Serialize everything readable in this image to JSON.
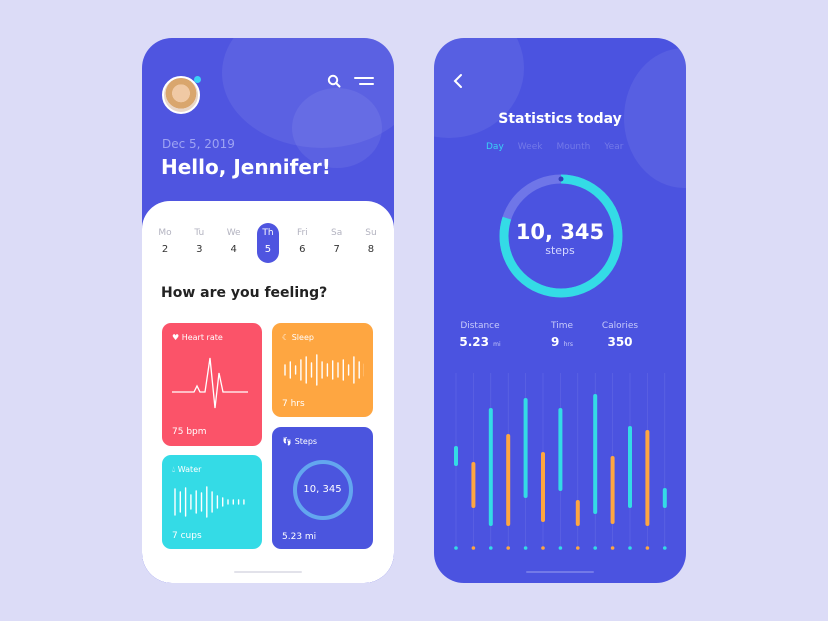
{
  "home": {
    "date": "Dec 5, 2019",
    "greeting": "Hello, Jennifer!",
    "question": "How are you feeling?",
    "days": [
      {
        "n": "Mo",
        "d": "2"
      },
      {
        "n": "Tu",
        "d": "3"
      },
      {
        "n": "We",
        "d": "4"
      },
      {
        "n": "Th",
        "d": "5",
        "selected": true
      },
      {
        "n": "Fri",
        "d": "6"
      },
      {
        "n": "Sa",
        "d": "7"
      },
      {
        "n": "Su",
        "d": "8"
      }
    ],
    "cards": {
      "heart": {
        "title": "Heart rate",
        "value": "75 bpm",
        "color": "#fb5369"
      },
      "sleep": {
        "title": "Sleep",
        "value": "7 hrs",
        "color": "#fea641"
      },
      "water": {
        "title": "Water",
        "value": "7 cups",
        "color": "#34dbe6"
      },
      "steps": {
        "title": "Steps",
        "ring": "10, 345",
        "value": "5.23 mi",
        "color": "#4b55de"
      }
    }
  },
  "stats": {
    "title": "Statistics today",
    "tabs": [
      "Day",
      "Week",
      "Mounth",
      "Year"
    ],
    "active_tab": "Day",
    "steps": "10, 345",
    "steps_label": "steps",
    "progress": 0.8,
    "items": [
      {
        "label": "Distance",
        "value": "5.23",
        "unit": "mi"
      },
      {
        "label": "Time",
        "value": "9",
        "unit": "hrs"
      },
      {
        "label": "Calories",
        "value": "350",
        "unit": ""
      }
    ],
    "colors": {
      "accent": "#34dbe6",
      "secondary": "#fea641"
    }
  }
}
